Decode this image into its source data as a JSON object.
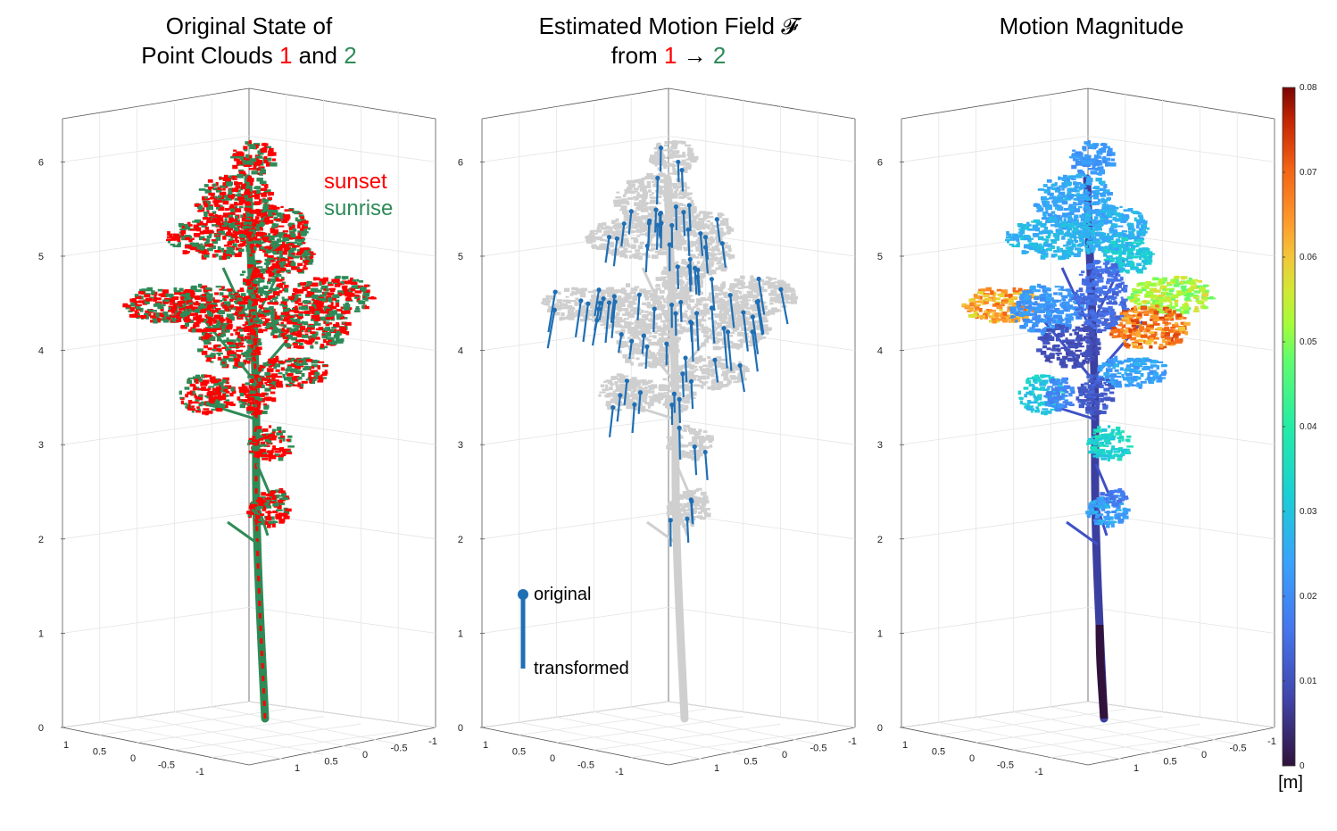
{
  "colors": {
    "cloud1": "#ff0000",
    "cloud2": "#2e8b57",
    "gray": "#cfcfcf",
    "arrow": "#1f6fb5",
    "frame": "#555555",
    "grid": "#e4e4e4"
  },
  "panels": [
    {
      "title_lines": [
        [
          {
            "text": "Original State of",
            "color": "#000000"
          }
        ],
        [
          {
            "text": "Point Clouds ",
            "color": "#000000"
          },
          {
            "text": "1",
            "color": "#ff0000"
          },
          {
            "text": " and ",
            "color": "#000000"
          },
          {
            "text": "2",
            "color": "#2e8b57"
          }
        ]
      ]
    },
    {
      "title_lines": [
        [
          {
            "text": "Estimated Motion Field 𝓕",
            "color": "#000000"
          }
        ],
        [
          {
            "text": "from ",
            "color": "#000000"
          },
          {
            "text": "1",
            "color": "#ff0000"
          },
          {
            "text": " → ",
            "color": "#000000"
          },
          {
            "text": "2",
            "color": "#2e8b57"
          }
        ]
      ]
    },
    {
      "title_lines": [
        [
          {
            "text": "Motion Magnitude",
            "color": "#000000"
          }
        ]
      ]
    }
  ],
  "legend1": {
    "sunset": "sunset",
    "sunrise": "sunrise"
  },
  "legend2": {
    "original": "original",
    "transformed": "transformed"
  },
  "colorbar": {
    "unit": "[m]",
    "ticks": [
      "0",
      "0.01",
      "0.02",
      "0.03",
      "0.04",
      "0.05",
      "0.06",
      "0.07",
      "0.08"
    ],
    "range": [
      0,
      0.08
    ],
    "colormap": "turbo"
  },
  "chart_data": [
    {
      "type": "scatter",
      "mode": "3d",
      "title": "Original State of Point Clouds 1 and 2",
      "zticks": [
        "0",
        "1",
        "2",
        "3",
        "4",
        "5",
        "6"
      ],
      "zlim": [
        0,
        6.5
      ],
      "xticks": [
        "1",
        "0.5",
        "0",
        "-0.5",
        "-1"
      ],
      "yticks": [
        "1",
        "0.5",
        "0",
        "-0.5",
        "-1"
      ],
      "series": [
        {
          "name": "sunset"
        },
        {
          "name": "sunrise"
        }
      ]
    },
    {
      "type": "scatter",
      "mode": "3d-quiver",
      "title": "Estimated Motion Field 𝓕 from 1 → 2",
      "zticks": [
        "0",
        "1",
        "2",
        "3",
        "4",
        "5",
        "6"
      ],
      "zlim": [
        0,
        6.5
      ],
      "xticks": [
        "1",
        "0.5",
        "0",
        "-0.5",
        "-1"
      ],
      "yticks": [
        "1",
        "0.5",
        "0",
        "-0.5",
        "-1"
      ]
    },
    {
      "type": "scatter",
      "mode": "3d",
      "title": "Motion Magnitude",
      "zticks": [
        "0",
        "1",
        "2",
        "3",
        "4",
        "5",
        "6"
      ],
      "zlim": [
        0,
        6.5
      ],
      "xticks": [
        "1",
        "0.5",
        "0",
        "-0.5",
        "-1"
      ],
      "yticks": [
        "1",
        "0.5",
        "0",
        "-0.5",
        "-1"
      ],
      "clim": [
        0,
        0.08
      ]
    }
  ]
}
